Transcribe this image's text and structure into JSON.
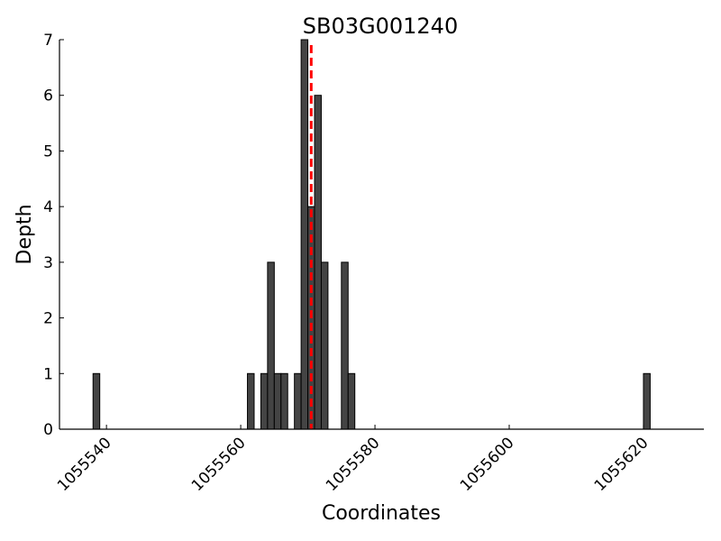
{
  "chart_data": {
    "type": "bar",
    "title": "SB03G001240",
    "xlabel": "Coordinates",
    "ylabel": "Depth",
    "xlim": [
      1055533,
      1055629
    ],
    "ylim": [
      0,
      7
    ],
    "x_ticks": [
      1055540,
      1055560,
      1055580,
      1055600,
      1055620
    ],
    "y_ticks": [
      0,
      1,
      2,
      3,
      4,
      5,
      6,
      7
    ],
    "bar_width": 1,
    "grid": false,
    "bar_color": "#444444",
    "bar_edge_color": "#000000",
    "marker_line": {
      "x": 1055570.5,
      "color": "#ff0000",
      "style": "dashed"
    },
    "bars": [
      {
        "x": 1055538,
        "value": 1
      },
      {
        "x": 1055561,
        "value": 1
      },
      {
        "x": 1055563,
        "value": 1
      },
      {
        "x": 1055564,
        "value": 3
      },
      {
        "x": 1055565,
        "value": 1
      },
      {
        "x": 1055566,
        "value": 1
      },
      {
        "x": 1055568,
        "value": 1
      },
      {
        "x": 1055569,
        "value": 7
      },
      {
        "x": 1055570,
        "value": 4
      },
      {
        "x": 1055571,
        "value": 6
      },
      {
        "x": 1055572,
        "value": 3
      },
      {
        "x": 1055575,
        "value": 3
      },
      {
        "x": 1055576,
        "value": 1
      },
      {
        "x": 1055620,
        "value": 1
      }
    ]
  }
}
